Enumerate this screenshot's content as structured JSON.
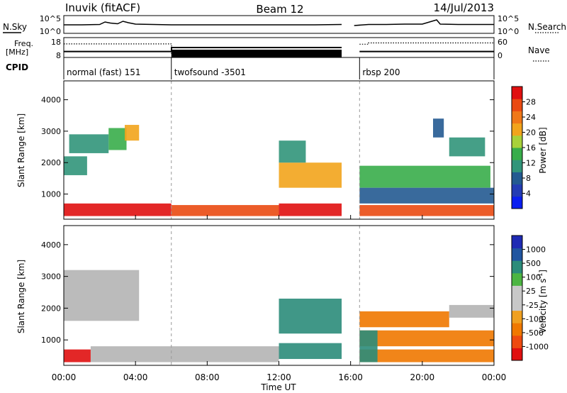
{
  "header": {
    "station": "Inuvik (fitACF)",
    "beam": "Beam 12",
    "date": "14/Jul/2013"
  },
  "strip_labels": {
    "nsky": "N.Sky",
    "nsearch": "N.Search",
    "freq_top": "Freq.",
    "freq_unit": "[MHz]",
    "nave": "Nave",
    "cpid": "CPID",
    "exp_ticks": [
      "10^5",
      "10^0"
    ],
    "freq_ticks": [
      "18",
      "8"
    ],
    "nave_ticks": [
      "60",
      "0"
    ]
  },
  "colors": {
    "power_scale": [
      "#0a1ef0",
      "#233cb4",
      "#235a91",
      "#31957a",
      "#38ad4a",
      "#a8d13a",
      "#f2a41c",
      "#f07818",
      "#ea4a12",
      "#e01010"
    ],
    "velocity_scale": [
      "#1e2ab4",
      "#2055a0",
      "#2b8c7a",
      "#4cb542",
      "#c8c8c8",
      "#c8c8c8",
      "#f0a020",
      "#f07800",
      "#ee4a10",
      "#e01010"
    ],
    "ground_scatter": "#b4b4b4"
  },
  "chart_data": [
    {
      "type": "line",
      "name": "sky-noise-strip",
      "title": "N.Sky / N.Search",
      "x": [
        0,
        1,
        2,
        2.3,
        2.6,
        3,
        3.3,
        3.6,
        4,
        5,
        6,
        8,
        10,
        12,
        14,
        15.5,
        16,
        16.2,
        17,
        18,
        19,
        20,
        20.8,
        21,
        22,
        24
      ],
      "series": [
        {
          "name": "N.Sky",
          "values": [
            2.4,
            2.4,
            2.5,
            3.2,
            2.9,
            2.7,
            3.4,
            3.0,
            2.6,
            2.5,
            2.4,
            2.4,
            2.4,
            2.4,
            2.4,
            2.5,
            null,
            2.2,
            2.5,
            2.5,
            2.6,
            2.6,
            3.8,
            2.6,
            2.5,
            2.5
          ]
        }
      ],
      "ylim": [
        0,
        5
      ],
      "ylabel_ticks": [
        "10^0",
        "10^5"
      ]
    },
    {
      "type": "line",
      "name": "frequency-nave-strip",
      "x": [
        0,
        6,
        6.01,
        15.5,
        16,
        16.5,
        17,
        24
      ],
      "series": [
        {
          "name": "Freq.",
          "values": [
            11,
            11,
            13,
            13,
            null,
            11,
            11,
            11
          ]
        },
        {
          "name": "Nave",
          "values": [
            41,
            41,
            12,
            12,
            null,
            40,
            44,
            44
          ]
        }
      ],
      "freq_ylim": [
        8,
        18
      ],
      "nave_ylim": [
        0,
        60
      ]
    },
    {
      "type": "table",
      "name": "cpid-strip",
      "segments": [
        {
          "label": "normal (fast) 151",
          "start": 0,
          "end": 6
        },
        {
          "label": "twofsound -3501",
          "start": 6,
          "end": 16.5
        },
        {
          "label": "rbsp 200",
          "start": 16.5,
          "end": 24
        }
      ]
    },
    {
      "type": "heatmap",
      "name": "power",
      "xlabel": "",
      "ylabel": "Slant Range [km]",
      "xlim": [
        0,
        24
      ],
      "ylim": [
        200,
        4600
      ],
      "y_ticks": [
        1000,
        2000,
        3000,
        4000
      ],
      "colorbar": {
        "label": "Power [dB]",
        "ticks": [
          "4",
          "8",
          "12",
          "16",
          "20",
          "24",
          "28"
        ],
        "range": [
          0,
          30
        ]
      },
      "regions": [
        {
          "t0": 0,
          "t1": 6,
          "r0": 300,
          "r1": 700,
          "value": 27
        },
        {
          "t0": 6,
          "t1": 12,
          "r0": 300,
          "r1": 650,
          "value": 25
        },
        {
          "t0": 12,
          "t1": 15.5,
          "r0": 300,
          "r1": 700,
          "value": 28
        },
        {
          "t0": 16.5,
          "t1": 24,
          "r0": 300,
          "r1": 650,
          "value": 26
        },
        {
          "t0": 0,
          "t1": 1.3,
          "r0": 1600,
          "r1": 2200,
          "value": 9
        },
        {
          "t0": 0.3,
          "t1": 2.5,
          "r0": 2300,
          "r1": 2900,
          "value": 10
        },
        {
          "t0": 2.5,
          "t1": 3.5,
          "r0": 2400,
          "r1": 3100,
          "value": 14
        },
        {
          "t0": 3.4,
          "t1": 4.2,
          "r0": 2700,
          "r1": 3200,
          "value": 19
        },
        {
          "t0": 12,
          "t1": 15.5,
          "r0": 1200,
          "r1": 2000,
          "value": 20
        },
        {
          "t0": 12,
          "t1": 13.5,
          "r0": 2000,
          "r1": 2700,
          "value": 11
        },
        {
          "t0": 16.5,
          "t1": 23.8,
          "r0": 1200,
          "r1": 1900,
          "value": 12
        },
        {
          "t0": 16.5,
          "t1": 24,
          "r0": 700,
          "r1": 1200,
          "value": 8
        },
        {
          "t0": 21.5,
          "t1": 23.5,
          "r0": 2200,
          "r1": 2800,
          "value": 10
        },
        {
          "t0": 20.6,
          "t1": 21.2,
          "r0": 2800,
          "r1": 3400,
          "value": 7
        }
      ]
    },
    {
      "type": "heatmap",
      "name": "velocity",
      "xlabel": "Time UT",
      "ylabel": "Slant Range [km]",
      "xlim": [
        0,
        24
      ],
      "ylim": [
        200,
        4600
      ],
      "y_ticks": [
        1000,
        2000,
        3000,
        4000
      ],
      "x_tick_labels": [
        "00:00",
        "04:00",
        "08:00",
        "12:00",
        "16:00",
        "20:00",
        "00:00"
      ],
      "colorbar": {
        "label": "Velocity [m s^-1]",
        "ticks": [
          "1000",
          "500",
          "100",
          "25",
          "-25",
          "-100",
          "-500",
          "-1000"
        ]
      },
      "regions": [
        {
          "t0": 0,
          "t1": 1.5,
          "r0": 300,
          "r1": 700,
          "value": -600
        },
        {
          "t0": 1.5,
          "t1": 12,
          "r0": 300,
          "r1": 800,
          "value": 0
        },
        {
          "t0": 12,
          "t1": 15.5,
          "r0": 400,
          "r1": 900,
          "value": 200
        },
        {
          "t0": 16.5,
          "t1": 24,
          "r0": 300,
          "r1": 700,
          "value": -500
        },
        {
          "t0": 0,
          "t1": 4.2,
          "r0": 1600,
          "r1": 3200,
          "value": 0
        },
        {
          "t0": 12,
          "t1": 15.5,
          "r0": 1200,
          "r1": 2300,
          "value": 300
        },
        {
          "t0": 16.5,
          "t1": 21.5,
          "r0": 1400,
          "r1": 1900,
          "value": -200
        },
        {
          "t0": 16.5,
          "t1": 24,
          "r0": 800,
          "r1": 1300,
          "value": -150
        },
        {
          "t0": 21.5,
          "t1": 24,
          "r0": 1700,
          "r1": 2100,
          "value": 0
        },
        {
          "t0": 16.5,
          "t1": 17.5,
          "r0": 300,
          "r1": 1300,
          "value": 250
        }
      ]
    }
  ],
  "axes": {
    "x_tick_labels": [
      "00:00",
      "04:00",
      "08:00",
      "12:00",
      "16:00",
      "20:00",
      "00:00"
    ],
    "y_tick_labels": [
      "1000",
      "2000",
      "3000",
      "4000"
    ],
    "ylabel": "Slant Range [km]",
    "xlabel": "Time UT",
    "power_label": "Power [dB]",
    "velocity_label": "Velocity [m s",
    "velocity_label_sup": "-1",
    "velocity_label_end": "]"
  }
}
